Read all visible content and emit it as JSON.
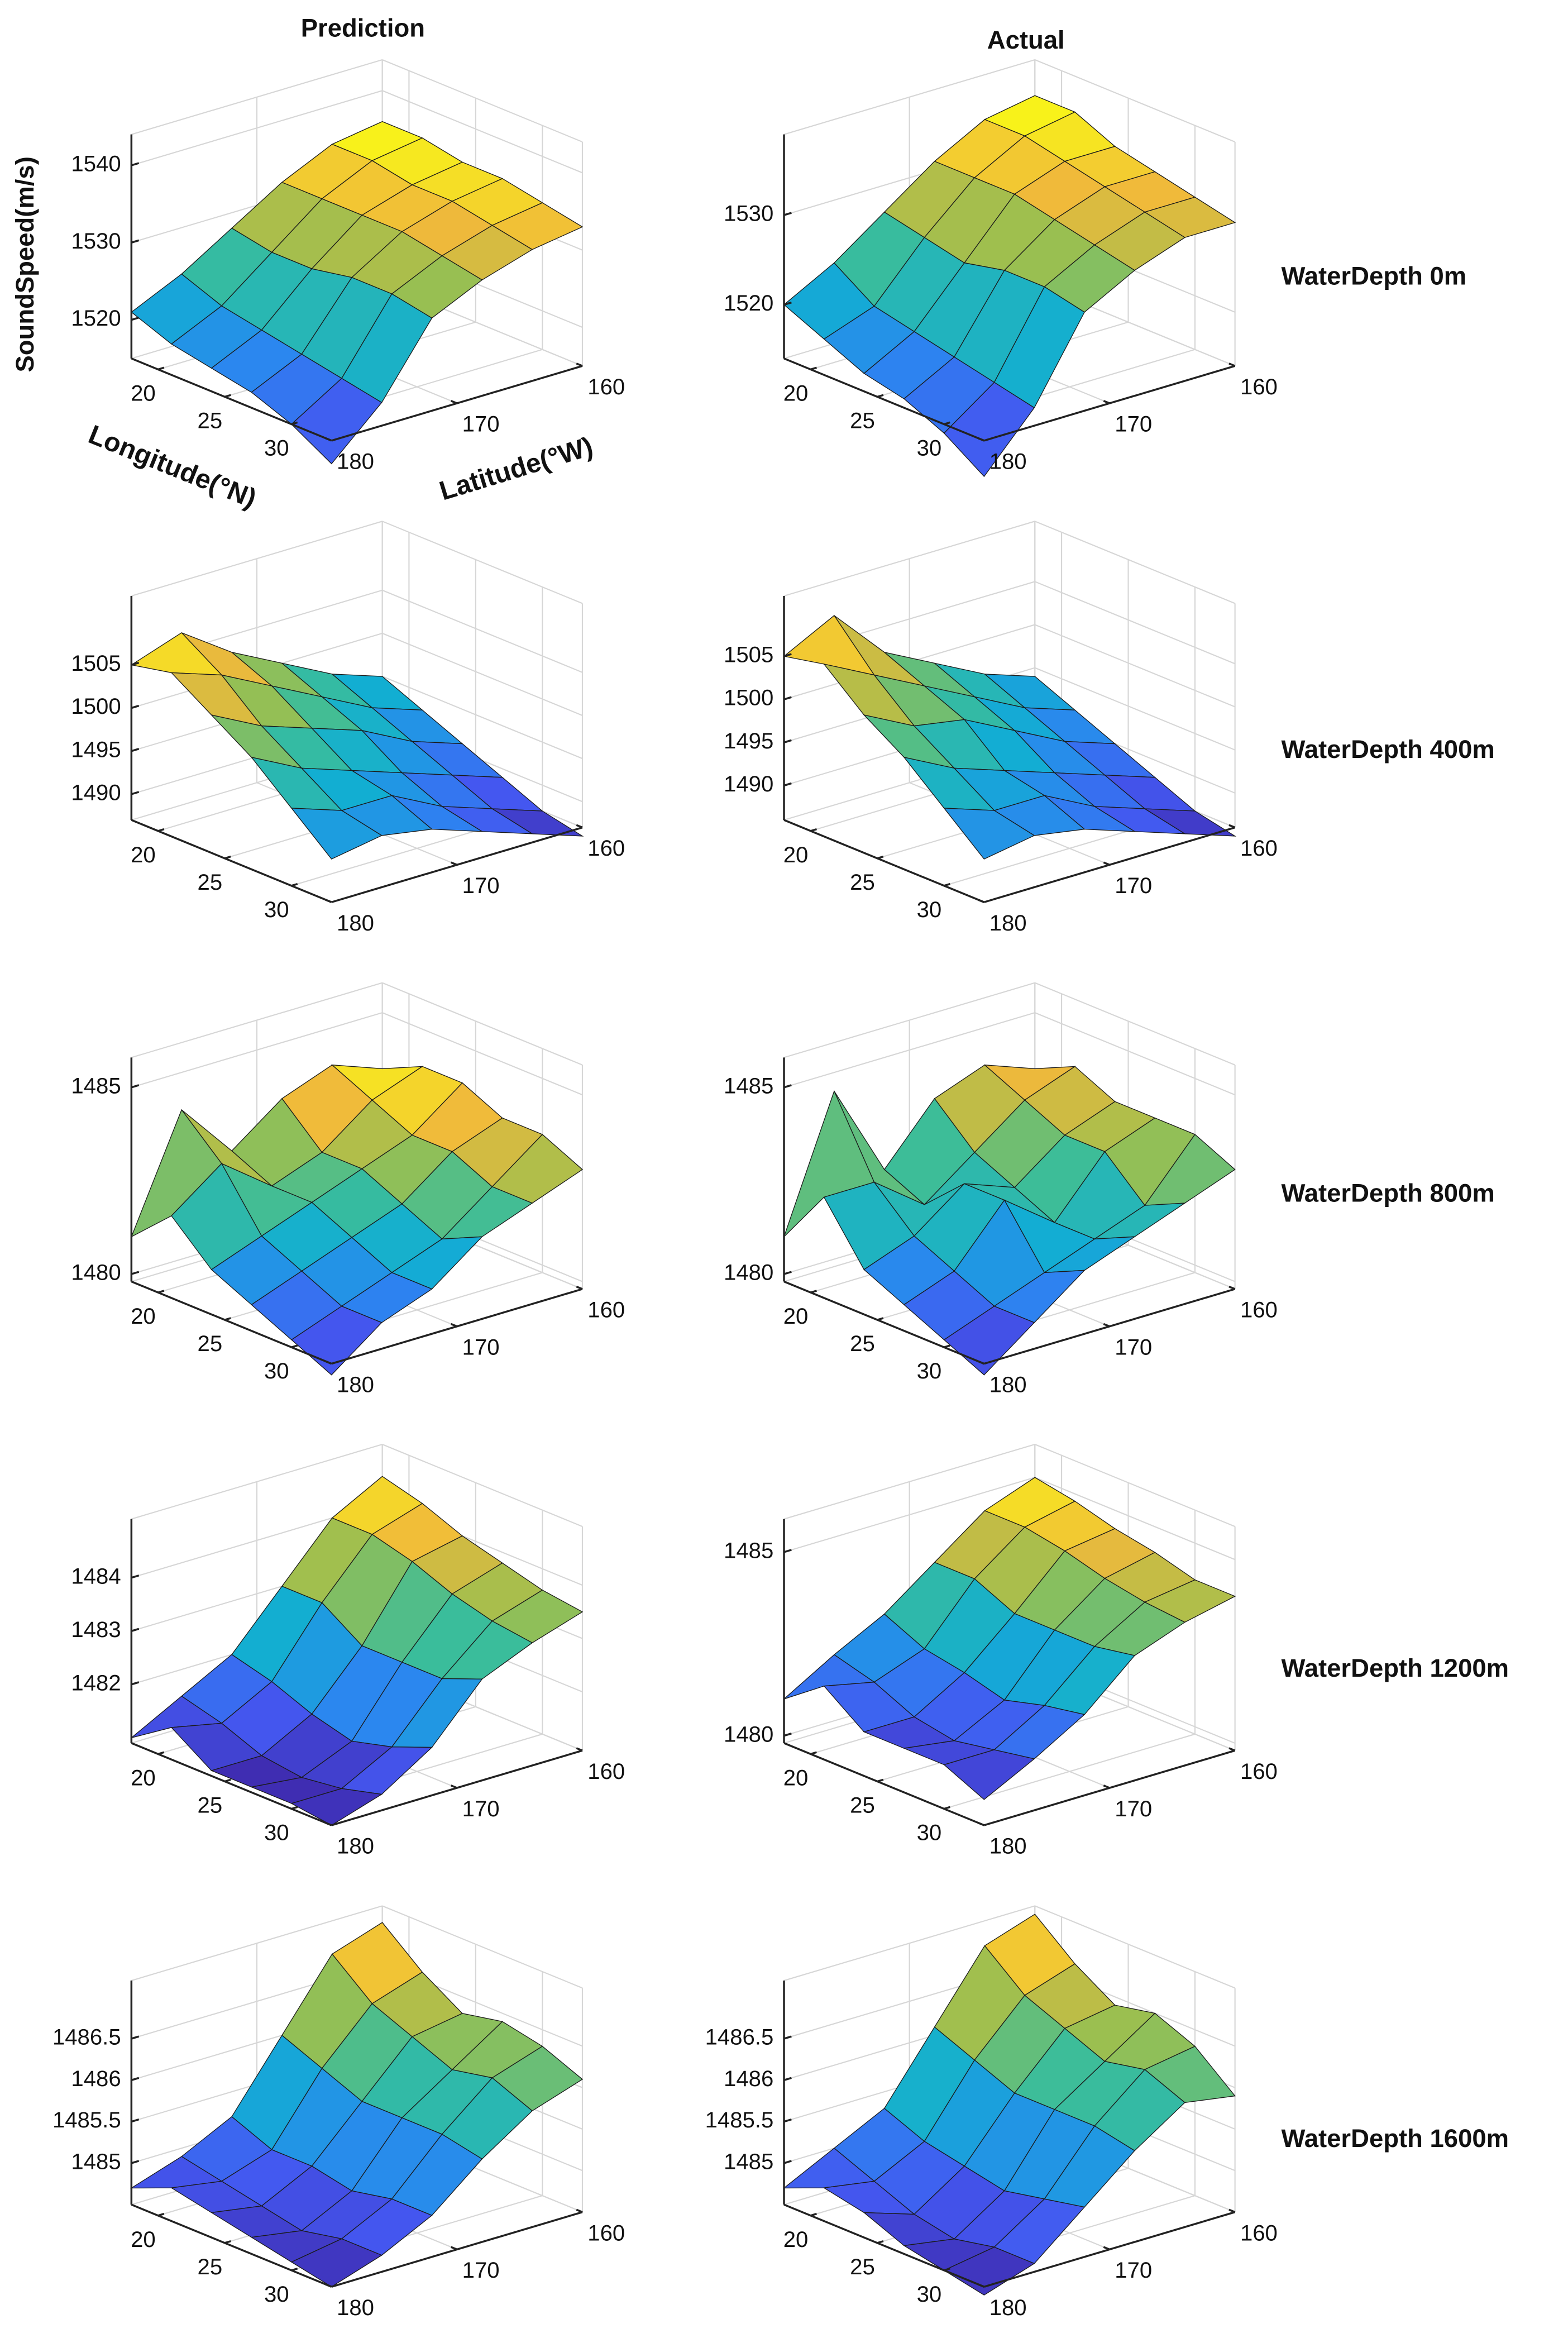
{
  "column_titles": [
    "Prediction",
    "Actual"
  ],
  "row_labels": [
    "WaterDepth 0m",
    "WaterDepth 400m",
    "WaterDepth 800m",
    "WaterDepth 1200m",
    "WaterDepth 1600m"
  ],
  "chart_data": [
    {
      "type": "surface",
      "xlabel": "Longitude(°N)",
      "ylabel": "Latitude(°W)",
      "zlabel": "SoundSpeed(m/s)",
      "x": [
        18,
        21,
        24,
        27,
        30,
        33
      ],
      "y": [
        180,
        176,
        172,
        168,
        164,
        160
      ],
      "z": [
        [
          1521,
          1524,
          1528,
          1532,
          1535,
          1536
        ],
        [
          1519,
          1522,
          1527,
          1532,
          1535,
          1536
        ],
        [
          1518,
          1521,
          1527,
          1532,
          1534,
          1535
        ],
        [
          1517,
          1520,
          1528,
          1532,
          1534,
          1535
        ],
        [
          1515,
          1519,
          1528,
          1531,
          1533,
          1534
        ],
        [
          1512,
          1518,
          1527,
          1530,
          1532,
          1533
        ]
      ],
      "xlim": [
        18,
        33
      ],
      "ylim": [
        180,
        160
      ],
      "zlim": [
        1515,
        1544
      ],
      "xticks": [
        20,
        25,
        30
      ],
      "yticks": [
        160,
        170,
        180
      ],
      "zticks": [
        1520,
        1530,
        1540
      ],
      "grid": true,
      "colormap": [
        "#3e26a8",
        "#4457f0",
        "#2c85f0",
        "#12aed2",
        "#3bbd9a",
        "#9cbf4f",
        "#f0b93b",
        "#f9fb15"
      ]
    },
    {
      "type": "surface",
      "x": [
        18,
        21,
        24,
        27,
        30,
        33
      ],
      "y": [
        180,
        176,
        172,
        168,
        164,
        160
      ],
      "z": [
        [
          1520,
          1523,
          1527,
          1531,
          1534,
          1535
        ],
        [
          1518,
          1520,
          1526,
          1531,
          1534,
          1535
        ],
        [
          1516,
          1519,
          1525,
          1531,
          1533,
          1533
        ],
        [
          1515,
          1518,
          1526,
          1530,
          1532,
          1532
        ],
        [
          1513,
          1517,
          1526,
          1529,
          1531,
          1531
        ],
        [
          1510,
          1516,
          1525,
          1528,
          1530,
          1530
        ]
      ],
      "xlim": [
        18,
        33
      ],
      "ylim": [
        180,
        160
      ],
      "zlim": [
        1514,
        1539
      ],
      "xticks": [
        20,
        25,
        30
      ],
      "yticks": [
        160,
        170,
        180
      ],
      "zticks": [
        1520,
        1530
      ],
      "grid": true,
      "colormap": [
        "#3e26a8",
        "#4457f0",
        "#2c85f0",
        "#12aed2",
        "#3bbd9a",
        "#9cbf4f",
        "#f0b93b",
        "#f9fb15"
      ]
    },
    {
      "type": "surface",
      "x": [
        18,
        21,
        24,
        27,
        30,
        33
      ],
      "y": [
        180,
        176,
        172,
        168,
        164,
        160
      ],
      "z": [
        [
          1505,
          1507,
          1503,
          1500,
          1497,
          1495
        ],
        [
          1506,
          1504,
          1501,
          1498,
          1495,
          1493
        ],
        [
          1503,
          1500,
          1498,
          1496,
          1493,
          1491
        ],
        [
          1500,
          1497,
          1495,
          1493,
          1491,
          1489
        ],
        [
          1496,
          1494,
          1494,
          1491,
          1489,
          1487
        ],
        [
          1492,
          1493,
          1492,
          1490,
          1488,
          1486
        ]
      ],
      "xlim": [
        18,
        33
      ],
      "ylim": [
        180,
        160
      ],
      "zlim": [
        1487,
        1513
      ],
      "xticks": [
        20,
        25,
        30
      ],
      "yticks": [
        160,
        170,
        180
      ],
      "zticks": [
        1490,
        1495,
        1500,
        1505
      ],
      "grid": true,
      "colormap": [
        "#3e26a8",
        "#4457f0",
        "#2c85f0",
        "#12aed2",
        "#3bbd9a",
        "#9cbf4f",
        "#f0b93b",
        "#f9fb15"
      ]
    },
    {
      "type": "surface",
      "x": [
        18,
        21,
        24,
        27,
        30,
        33
      ],
      "y": [
        180,
        176,
        172,
        168,
        164,
        160
      ],
      "z": [
        [
          1505,
          1508,
          1502,
          1499,
          1496,
          1494
        ],
        [
          1506,
          1503,
          1500,
          1497,
          1494,
          1492
        ],
        [
          1502,
          1499,
          1498,
          1495,
          1492,
          1490
        ],
        [
          1499,
          1496,
          1494,
          1492,
          1490,
          1488
        ],
        [
          1495,
          1493,
          1493,
          1490,
          1488,
          1486
        ],
        [
          1491,
          1492,
          1491,
          1489,
          1487,
          1485
        ]
      ],
      "xlim": [
        18,
        33
      ],
      "ylim": [
        180,
        160
      ],
      "zlim": [
        1486,
        1512
      ],
      "xticks": [
        20,
        25,
        30
      ],
      "yticks": [
        160,
        170,
        180
      ],
      "zticks": [
        1490,
        1495,
        1500,
        1505
      ],
      "grid": true,
      "colormap": [
        "#3e26a8",
        "#4457f0",
        "#2c85f0",
        "#12aed2",
        "#3bbd9a",
        "#9cbf4f",
        "#f0b93b",
        "#f9fb15"
      ]
    },
    {
      "type": "surface",
      "x": [
        18,
        21,
        24,
        27,
        30,
        33
      ],
      "y": [
        180,
        176,
        172,
        168,
        164,
        160
      ],
      "z": [
        [
          1481,
          1484,
          1482.5,
          1483.5,
          1484,
          1483.5
        ],
        [
          1482,
          1483,
          1482,
          1482.5,
          1483.5,
          1484
        ],
        [
          1481,
          1481.5,
          1482,
          1482.5,
          1483,
          1484
        ],
        [
          1480.5,
          1481,
          1481.5,
          1482,
          1483,
          1483.5
        ],
        [
          1480,
          1480.5,
          1481,
          1481.5,
          1482.5,
          1483.5
        ],
        [
          1479.5,
          1480.5,
          1481,
          1482,
          1482.5,
          1483
        ]
      ],
      "xlim": [
        18,
        33
      ],
      "ylim": [
        180,
        160
      ],
      "zlim": [
        1479.8,
        1485.8
      ],
      "xticks": [
        20,
        25,
        30
      ],
      "yticks": [
        160,
        170,
        180
      ],
      "zticks": [
        1480,
        1485
      ],
      "grid": true,
      "colormap": [
        "#3e26a8",
        "#4457f0",
        "#2c85f0",
        "#12aed2",
        "#3bbd9a",
        "#9cbf4f",
        "#f0b93b",
        "#f9fb15"
      ]
    },
    {
      "type": "surface",
      "x": [
        18,
        21,
        24,
        27,
        30,
        33
      ],
      "y": [
        180,
        176,
        172,
        168,
        164,
        160
      ],
      "z": [
        [
          1481,
          1484.5,
          1482,
          1483.5,
          1484,
          1483.5
        ],
        [
          1482.5,
          1482.5,
          1481.5,
          1482.5,
          1483.5,
          1484
        ],
        [
          1481,
          1481.5,
          1482.5,
          1482,
          1483,
          1483.5
        ],
        [
          1480.5,
          1481,
          1482.5,
          1481.5,
          1483,
          1483.5
        ],
        [
          1480,
          1480.5,
          1481,
          1481.5,
          1482,
          1483.5
        ],
        [
          1479.5,
          1480.5,
          1481.5,
          1482,
          1482.5,
          1483
        ]
      ],
      "xlim": [
        18,
        33
      ],
      "ylim": [
        180,
        160
      ],
      "zlim": [
        1479.8,
        1485.8
      ],
      "xticks": [
        20,
        25,
        30
      ],
      "yticks": [
        160,
        170,
        180
      ],
      "zticks": [
        1480,
        1485
      ],
      "grid": true,
      "colormap": [
        "#3e26a8",
        "#4457f0",
        "#2c85f0",
        "#12aed2",
        "#3bbd9a",
        "#9cbf4f",
        "#f0b93b",
        "#f9fb15"
      ]
    },
    {
      "type": "surface",
      "x": [
        18,
        21,
        24,
        27,
        30,
        33
      ],
      "y": [
        180,
        176,
        172,
        168,
        164,
        160
      ],
      "z": [
        [
          1481,
          1481.5,
          1482,
          1483,
          1484,
          1484.5
        ],
        [
          1481.5,
          1481.3,
          1481.8,
          1483,
          1484,
          1484.3
        ],
        [
          1481,
          1481,
          1481.5,
          1482.5,
          1483.8,
          1484
        ],
        [
          1481,
          1480.9,
          1481.3,
          1482.5,
          1483.5,
          1483.8
        ],
        [
          1481,
          1481,
          1481.5,
          1482.5,
          1483.3,
          1483.6
        ],
        [
          1480.9,
          1481.2,
          1481.8,
          1482.8,
          1483.2,
          1483.5
        ]
      ],
      "xlim": [
        18,
        33
      ],
      "ylim": [
        180,
        160
      ],
      "zlim": [
        1480.9,
        1485.1
      ],
      "xticks": [
        20,
        25,
        30
      ],
      "yticks": [
        160,
        170,
        180
      ],
      "zticks": [
        1482,
        1483,
        1484
      ],
      "grid": true,
      "colormap": [
        "#3e26a8",
        "#4457f0",
        "#2c85f0",
        "#12aed2",
        "#3bbd9a",
        "#9cbf4f",
        "#f0b93b",
        "#f9fb15"
      ]
    },
    {
      "type": "surface",
      "x": [
        18,
        21,
        24,
        27,
        30,
        33
      ],
      "y": [
        180,
        176,
        172,
        168,
        164,
        160
      ],
      "z": [
        [
          1481,
          1481.8,
          1482.5,
          1483.5,
          1484.5,
          1485
        ],
        [
          1481.8,
          1481.5,
          1482,
          1483.5,
          1484.5,
          1484.8
        ],
        [
          1481,
          1481,
          1481.8,
          1483,
          1484.3,
          1484.5
        ],
        [
          1481,
          1480.8,
          1481.5,
          1483,
          1484,
          1484.3
        ],
        [
          1481,
          1481,
          1481.8,
          1483,
          1483.8,
          1484
        ],
        [
          1480.5,
          1481.2,
          1482,
          1483.2,
          1483.7,
          1484
        ]
      ],
      "xlim": [
        18,
        33
      ],
      "ylim": [
        180,
        160
      ],
      "zlim": [
        1479.8,
        1485.9
      ],
      "xticks": [
        20,
        25,
        30
      ],
      "yticks": [
        160,
        170,
        180
      ],
      "zticks": [
        1480,
        1485
      ],
      "grid": true,
      "colormap": [
        "#3e26a8",
        "#4457f0",
        "#2c85f0",
        "#12aed2",
        "#3bbd9a",
        "#9cbf4f",
        "#f0b93b",
        "#f9fb15"
      ]
    },
    {
      "type": "surface",
      "x": [
        18,
        21,
        24,
        27,
        30,
        33
      ],
      "y": [
        180,
        176,
        172,
        168,
        164,
        160
      ],
      "z": [
        [
          1484.7,
          1484.9,
          1485.2,
          1486,
          1486.8,
          1487
        ],
        [
          1484.9,
          1484.8,
          1485,
          1485.8,
          1486.4,
          1486.6
        ],
        [
          1484.8,
          1484.7,
          1485,
          1485.6,
          1486.2,
          1486.3
        ],
        [
          1484.7,
          1484.6,
          1484.9,
          1485.6,
          1486,
          1486.4
        ],
        [
          1484.6,
          1484.7,
          1485,
          1485.6,
          1486.1,
          1486.3
        ],
        [
          1484.5,
          1484.7,
          1485,
          1485.5,
          1485.9,
          1486.1
        ]
      ],
      "xlim": [
        18,
        33
      ],
      "ylim": [
        180,
        160
      ],
      "zlim": [
        1484.5,
        1487.2
      ],
      "xticks": [
        20,
        25,
        30
      ],
      "yticks": [
        160,
        170,
        180
      ],
      "zticks": [
        1485,
        1485.5,
        1486,
        1486.5
      ],
      "grid": true,
      "colormap": [
        "#3e26a8",
        "#4457f0",
        "#2c85f0",
        "#12aed2",
        "#3bbd9a",
        "#9cbf4f",
        "#f0b93b",
        "#f9fb15"
      ]
    },
    {
      "type": "surface",
      "x": [
        18,
        21,
        24,
        27,
        30,
        33
      ],
      "y": [
        180,
        176,
        172,
        168,
        164,
        160
      ],
      "z": [
        [
          1484.7,
          1485,
          1485.3,
          1486.1,
          1486.9,
          1487.1
        ],
        [
          1484.9,
          1484.8,
          1485.1,
          1485.9,
          1486.5,
          1486.7
        ],
        [
          1484.8,
          1484.6,
          1485,
          1485.7,
          1486.3,
          1486.4
        ],
        [
          1484.6,
          1484.5,
          1484.9,
          1485.7,
          1486.1,
          1486.5
        ],
        [
          1484.5,
          1484.6,
          1485,
          1485.7,
          1486.2,
          1486.3
        ],
        [
          1484.4,
          1484.6,
          1485.1,
          1485.6,
          1486,
          1485.9
        ]
      ],
      "xlim": [
        18,
        33
      ],
      "ylim": [
        180,
        160
      ],
      "zlim": [
        1484.5,
        1487.2
      ],
      "xticks": [
        20,
        25,
        30
      ],
      "yticks": [
        160,
        170,
        180
      ],
      "zticks": [
        1485,
        1485.5,
        1486,
        1486.5
      ],
      "grid": true,
      "colormap": [
        "#3e26a8",
        "#4457f0",
        "#2c85f0",
        "#12aed2",
        "#3bbd9a",
        "#9cbf4f",
        "#f0b93b",
        "#f9fb15"
      ]
    }
  ]
}
